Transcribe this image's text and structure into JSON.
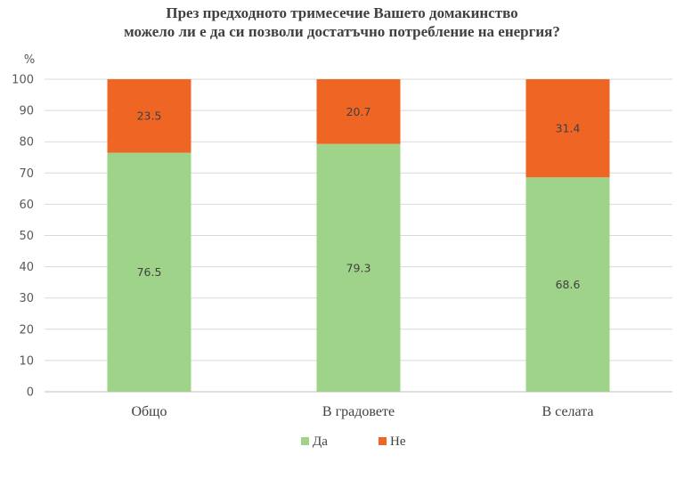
{
  "chart_data": {
    "type": "bar",
    "stacked": true,
    "title_lines": [
      "През предходното тримесечие Вашето домакинство",
      "можело ли е да си позволи достатъчно потребление на енергия?"
    ],
    "ylabel": "%",
    "ylim": [
      0,
      100
    ],
    "yticks": [
      0,
      10,
      20,
      30,
      40,
      50,
      60,
      70,
      80,
      90,
      100
    ],
    "categories": [
      "Общо",
      "В градовете",
      "В селата"
    ],
    "series": [
      {
        "name": "Да",
        "values": [
          76.5,
          79.3,
          68.6
        ],
        "color": "#9fd38a"
      },
      {
        "name": "Не",
        "values": [
          23.5,
          20.7,
          31.4
        ],
        "color": "#ef6524"
      }
    ],
    "grid": true,
    "legend_position": "bottom"
  }
}
